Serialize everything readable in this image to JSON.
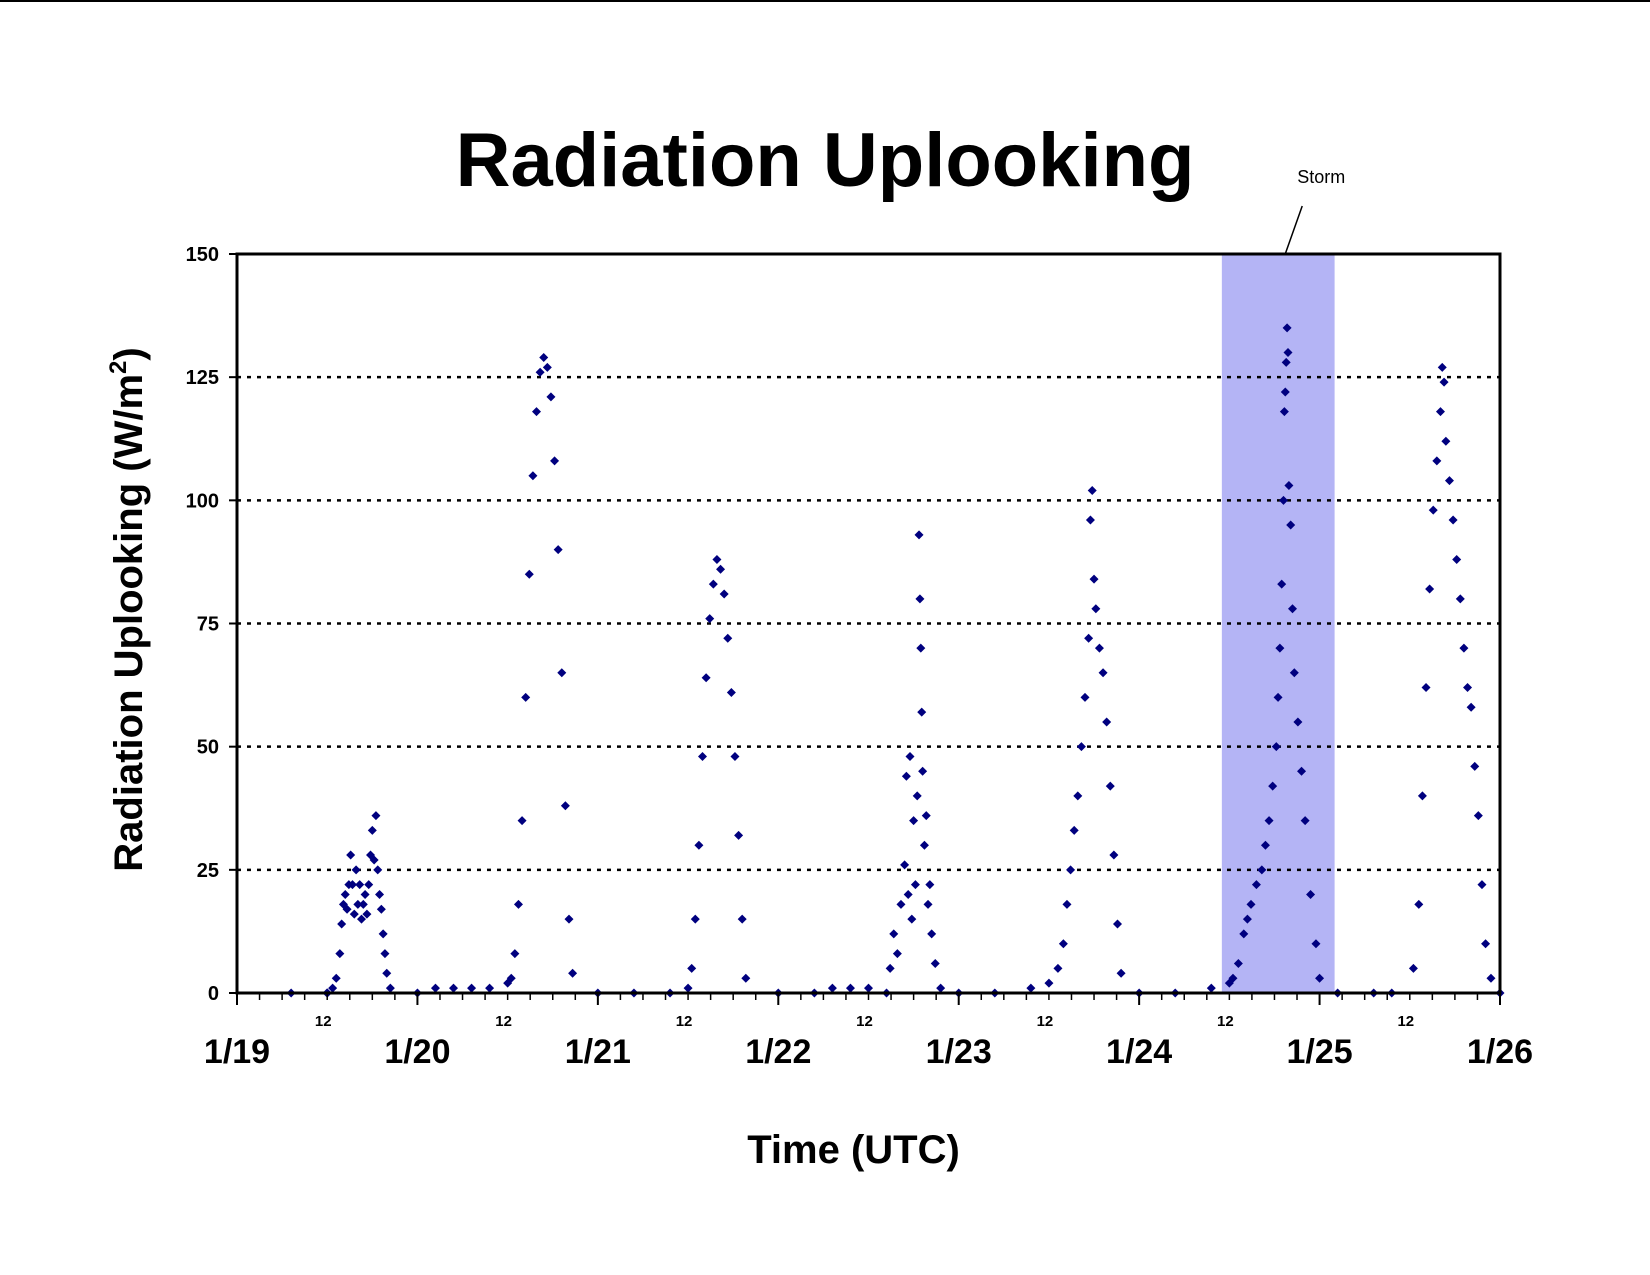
{
  "chart_data": {
    "type": "scatter",
    "title": "Radiation Uplooking",
    "xlabel": "Time (UTC)",
    "ylabel_main": "Radiation Uplooking (W/m",
    "ylabel_sup": "2",
    "ylabel_close": ")",
    "ylim": [
      0,
      150
    ],
    "yticks": [
      "0",
      "25",
      "50",
      "75",
      "100",
      "125",
      "150"
    ],
    "xlim": [
      "1/19 00:00",
      "1/26 00:00"
    ],
    "xticks_major": [
      "1/19",
      "1/20",
      "1/21",
      "1/22",
      "1/23",
      "1/24",
      "1/25",
      "1/26"
    ],
    "xticks_minor": [
      "12",
      "12",
      "12",
      "12",
      "12",
      "12",
      "12"
    ],
    "grid": "horizontal dotted",
    "marker": "diamond",
    "marker_color": "#00007f",
    "shaded_region": {
      "label": "Storm",
      "start": "1/24 11:00",
      "end": "1/25 02:00",
      "color": "#b4b4f5"
    },
    "x_unit": "days since 1/19 00:00",
    "series": [
      {
        "points": [
          [
            0.3,
            0
          ],
          [
            0.5,
            0
          ],
          [
            0.5,
            0
          ],
          [
            0.5,
            0
          ],
          [
            0.5,
            0
          ],
          [
            0.5,
            0
          ],
          [
            0.53,
            1
          ],
          [
            0.55,
            3
          ],
          [
            0.57,
            8
          ],
          [
            0.58,
            14
          ],
          [
            0.59,
            18
          ],
          [
            0.6,
            20
          ],
          [
            0.61,
            17
          ],
          [
            0.62,
            22
          ],
          [
            0.63,
            28
          ],
          [
            0.64,
            22
          ],
          [
            0.65,
            16
          ],
          [
            0.66,
            25
          ],
          [
            0.67,
            18
          ],
          [
            0.68,
            22
          ],
          [
            0.69,
            15
          ],
          [
            0.7,
            18
          ],
          [
            0.71,
            20
          ],
          [
            0.72,
            16
          ],
          [
            0.73,
            22
          ],
          [
            0.74,
            28
          ],
          [
            0.75,
            33
          ],
          [
            0.76,
            27
          ],
          [
            0.77,
            36
          ],
          [
            0.78,
            25
          ],
          [
            0.79,
            20
          ],
          [
            0.8,
            17
          ],
          [
            0.81,
            12
          ],
          [
            0.82,
            8
          ],
          [
            0.83,
            4
          ],
          [
            0.85,
            1
          ],
          [
            1.0,
            0
          ],
          [
            1.1,
            1
          ],
          [
            1.2,
            1
          ],
          [
            1.3,
            1
          ],
          [
            1.4,
            1
          ],
          [
            1.5,
            2
          ],
          [
            1.52,
            3
          ],
          [
            1.54,
            8
          ],
          [
            1.56,
            18
          ],
          [
            1.58,
            35
          ],
          [
            1.6,
            60
          ],
          [
            1.62,
            85
          ],
          [
            1.64,
            105
          ],
          [
            1.66,
            118
          ],
          [
            1.68,
            126
          ],
          [
            1.7,
            129
          ],
          [
            1.72,
            127
          ],
          [
            1.74,
            121
          ],
          [
            1.76,
            108
          ],
          [
            1.78,
            90
          ],
          [
            1.8,
            65
          ],
          [
            1.82,
            38
          ],
          [
            1.84,
            15
          ],
          [
            1.86,
            4
          ],
          [
            2.0,
            0
          ],
          [
            2.2,
            0
          ],
          [
            2.4,
            0
          ],
          [
            2.5,
            1
          ],
          [
            2.52,
            5
          ],
          [
            2.54,
            15
          ],
          [
            2.56,
            30
          ],
          [
            2.58,
            48
          ],
          [
            2.6,
            64
          ],
          [
            2.62,
            76
          ],
          [
            2.64,
            83
          ],
          [
            2.66,
            88
          ],
          [
            2.68,
            86
          ],
          [
            2.7,
            81
          ],
          [
            2.72,
            72
          ],
          [
            2.74,
            61
          ],
          [
            2.76,
            48
          ],
          [
            2.78,
            32
          ],
          [
            2.8,
            15
          ],
          [
            2.82,
            3
          ],
          [
            3.0,
            0
          ],
          [
            3.2,
            0
          ],
          [
            3.3,
            1
          ],
          [
            3.4,
            1
          ],
          [
            3.5,
            1
          ],
          [
            3.6,
            0
          ],
          [
            3.62,
            5
          ],
          [
            3.64,
            12
          ],
          [
            3.66,
            8
          ],
          [
            3.68,
            18
          ],
          [
            3.7,
            26
          ],
          [
            3.71,
            44
          ],
          [
            3.72,
            20
          ],
          [
            3.73,
            48
          ],
          [
            3.74,
            15
          ],
          [
            3.75,
            35
          ],
          [
            3.76,
            22
          ],
          [
            3.77,
            40
          ],
          [
            3.78,
            93
          ],
          [
            3.785,
            80
          ],
          [
            3.79,
            70
          ],
          [
            3.795,
            57
          ],
          [
            3.8,
            45
          ],
          [
            3.81,
            30
          ],
          [
            3.82,
            36
          ],
          [
            3.83,
            18
          ],
          [
            3.84,
            22
          ],
          [
            3.85,
            12
          ],
          [
            3.87,
            6
          ],
          [
            3.9,
            1
          ],
          [
            4.0,
            0
          ],
          [
            4.2,
            0
          ],
          [
            4.4,
            1
          ],
          [
            4.5,
            2
          ],
          [
            4.55,
            5
          ],
          [
            4.58,
            10
          ],
          [
            4.6,
            18
          ],
          [
            4.62,
            25
          ],
          [
            4.64,
            33
          ],
          [
            4.66,
            40
          ],
          [
            4.68,
            50
          ],
          [
            4.7,
            60
          ],
          [
            4.72,
            72
          ],
          [
            4.73,
            96
          ],
          [
            4.74,
            102
          ],
          [
            4.75,
            84
          ],
          [
            4.76,
            78
          ],
          [
            4.78,
            70
          ],
          [
            4.8,
            65
          ],
          [
            4.82,
            55
          ],
          [
            4.84,
            42
          ],
          [
            4.86,
            28
          ],
          [
            4.88,
            14
          ],
          [
            4.9,
            4
          ],
          [
            5.0,
            0
          ],
          [
            5.2,
            0
          ],
          [
            5.4,
            1
          ],
          [
            5.5,
            2
          ],
          [
            5.52,
            3
          ],
          [
            5.55,
            6
          ],
          [
            5.58,
            12
          ],
          [
            5.6,
            15
          ],
          [
            5.62,
            18
          ],
          [
            5.65,
            22
          ],
          [
            5.68,
            25
          ],
          [
            5.7,
            30
          ],
          [
            5.72,
            35
          ],
          [
            5.74,
            42
          ],
          [
            5.76,
            50
          ],
          [
            5.77,
            60
          ],
          [
            5.78,
            70
          ],
          [
            5.79,
            83
          ],
          [
            5.8,
            100
          ],
          [
            5.805,
            118
          ],
          [
            5.81,
            122
          ],
          [
            5.815,
            128
          ],
          [
            5.82,
            135
          ],
          [
            5.825,
            130
          ],
          [
            5.83,
            103
          ],
          [
            5.84,
            95
          ],
          [
            5.85,
            78
          ],
          [
            5.86,
            65
          ],
          [
            5.88,
            55
          ],
          [
            5.9,
            45
          ],
          [
            5.92,
            35
          ],
          [
            5.95,
            20
          ],
          [
            5.98,
            10
          ],
          [
            6.0,
            3
          ],
          [
            6.1,
            0
          ],
          [
            6.3,
            0
          ],
          [
            6.4,
            0
          ],
          [
            6.52,
            5
          ],
          [
            6.55,
            18
          ],
          [
            6.57,
            40
          ],
          [
            6.59,
            62
          ],
          [
            6.61,
            82
          ],
          [
            6.63,
            98
          ],
          [
            6.65,
            108
          ],
          [
            6.67,
            118
          ],
          [
            6.68,
            127
          ],
          [
            6.69,
            124
          ],
          [
            6.7,
            112
          ],
          [
            6.72,
            104
          ],
          [
            6.74,
            96
          ],
          [
            6.76,
            88
          ],
          [
            6.78,
            80
          ],
          [
            6.8,
            70
          ],
          [
            6.82,
            62
          ],
          [
            6.84,
            58
          ],
          [
            6.86,
            46
          ],
          [
            6.88,
            36
          ],
          [
            6.9,
            22
          ],
          [
            6.92,
            10
          ],
          [
            6.95,
            3
          ],
          [
            7.0,
            0
          ]
        ]
      }
    ],
    "annotations": [
      {
        "text": "Storm"
      }
    ]
  }
}
